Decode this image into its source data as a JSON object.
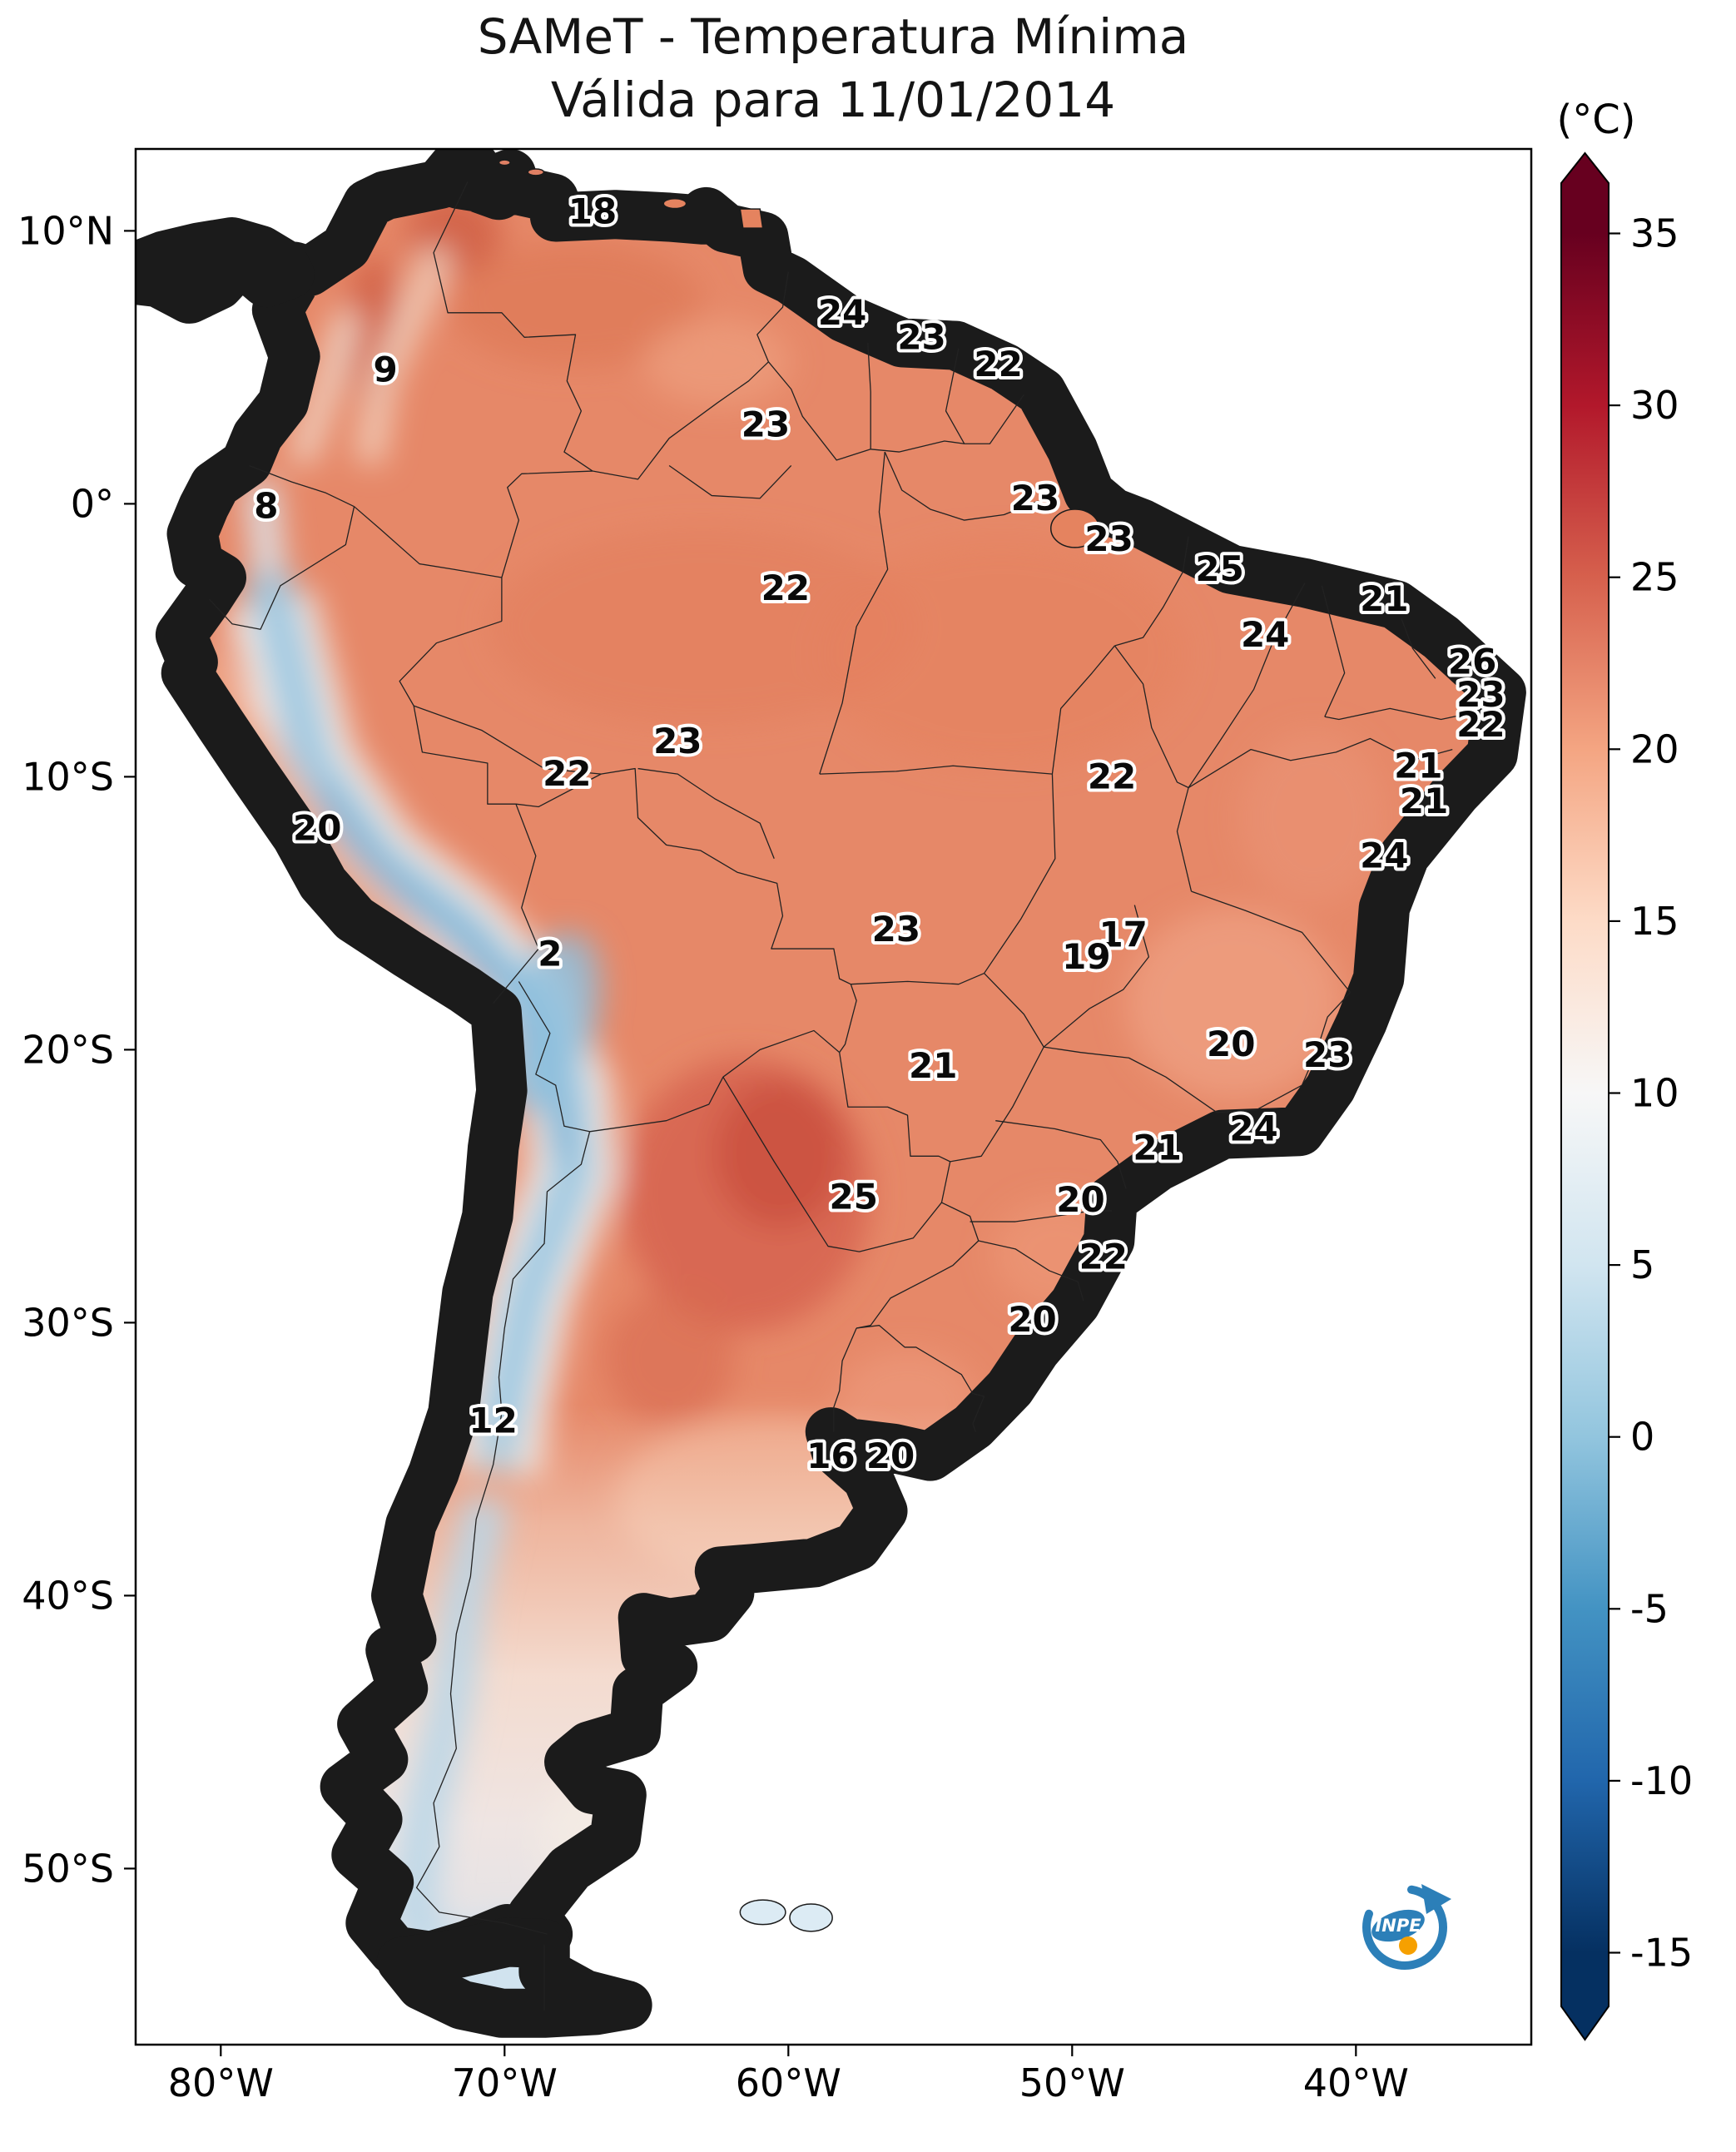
{
  "title": {
    "line1": "SAMeT - Temperatura Mínima",
    "line2": "Válida para 11/01/2014"
  },
  "colorbar": {
    "unit": "(°C)",
    "min": -15,
    "max": 35,
    "ticks": [
      35,
      30,
      25,
      20,
      15,
      10,
      5,
      0,
      -5,
      -10,
      -15
    ],
    "palette": [
      "#67001f",
      "#b2182b",
      "#d6604d",
      "#f4a582",
      "#fddbc7",
      "#f7f7f7",
      "#d1e5f0",
      "#92c5de",
      "#4393c3",
      "#2166ac",
      "#053061"
    ]
  },
  "axes": {
    "extent": {
      "lon_min": -83,
      "lon_max": -33.8,
      "lat_min": -56.5,
      "lat_max": 13
    },
    "lat_ticks": [
      {
        "label": "10°N",
        "value": 10
      },
      {
        "label": "0°",
        "value": 0
      },
      {
        "label": "10°S",
        "value": -10
      },
      {
        "label": "20°S",
        "value": -20
      },
      {
        "label": "30°S",
        "value": -30
      },
      {
        "label": "40°S",
        "value": -40
      },
      {
        "label": "50°S",
        "value": -50
      }
    ],
    "lon_ticks": [
      {
        "label": "80°W",
        "value": -80
      },
      {
        "label": "70°W",
        "value": -70
      },
      {
        "label": "60°W",
        "value": -60
      },
      {
        "label": "50°W",
        "value": -50
      },
      {
        "label": "40°W",
        "value": -40
      }
    ]
  },
  "map": {
    "temperature_labels": [
      {
        "value": 18,
        "lon": -66.9,
        "lat": 10.7
      },
      {
        "value": 24,
        "lon": -58.1,
        "lat": 7.0
      },
      {
        "value": 23,
        "lon": -55.3,
        "lat": 6.1
      },
      {
        "value": 22,
        "lon": -52.6,
        "lat": 5.1
      },
      {
        "value": 9,
        "lon": -74.2,
        "lat": 4.9
      },
      {
        "value": 23,
        "lon": -60.8,
        "lat": 2.9
      },
      {
        "value": 8,
        "lon": -78.4,
        "lat": -0.1
      },
      {
        "value": 23,
        "lon": -51.3,
        "lat": 0.2
      },
      {
        "value": 23,
        "lon": -48.7,
        "lat": -1.3
      },
      {
        "value": 25,
        "lon": -44.8,
        "lat": -2.4
      },
      {
        "value": 22,
        "lon": -60.1,
        "lat": -3.1
      },
      {
        "value": 21,
        "lon": -39.0,
        "lat": -3.5
      },
      {
        "value": 24,
        "lon": -43.2,
        "lat": -4.8
      },
      {
        "value": 26,
        "lon": -35.9,
        "lat": -5.8
      },
      {
        "value": 23,
        "lon": -35.6,
        "lat": -7.0
      },
      {
        "value": 22,
        "lon": -35.6,
        "lat": -8.1
      },
      {
        "value": 23,
        "lon": -63.9,
        "lat": -8.7
      },
      {
        "value": 21,
        "lon": -37.8,
        "lat": -9.6
      },
      {
        "value": 22,
        "lon": -67.8,
        "lat": -9.9
      },
      {
        "value": 22,
        "lon": -48.6,
        "lat": -10.0
      },
      {
        "value": 21,
        "lon": -37.6,
        "lat": -10.9
      },
      {
        "value": 20,
        "lon": -76.6,
        "lat": -11.9
      },
      {
        "value": 24,
        "lon": -39.0,
        "lat": -12.9
      },
      {
        "value": 23,
        "lon": -56.2,
        "lat": -15.6
      },
      {
        "value": 17,
        "lon": -48.2,
        "lat": -15.8
      },
      {
        "value": 19,
        "lon": -49.5,
        "lat": -16.6
      },
      {
        "value": 2,
        "lon": -68.4,
        "lat": -16.5
      },
      {
        "value": 21,
        "lon": -54.9,
        "lat": -20.6
      },
      {
        "value": 20,
        "lon": -44.4,
        "lat": -19.8
      },
      {
        "value": 23,
        "lon": -41.0,
        "lat": -20.2
      },
      {
        "value": 21,
        "lon": -47.0,
        "lat": -23.6
      },
      {
        "value": 24,
        "lon": -43.6,
        "lat": -22.9
      },
      {
        "value": 25,
        "lon": -57.7,
        "lat": -25.4
      },
      {
        "value": 20,
        "lon": -49.7,
        "lat": -25.5
      },
      {
        "value": 22,
        "lon": -48.9,
        "lat": -27.6
      },
      {
        "value": 20,
        "lon": -51.4,
        "lat": -29.9
      },
      {
        "value": 12,
        "lon": -70.4,
        "lat": -33.6
      },
      {
        "value": 16,
        "lon": -58.5,
        "lat": -34.9
      },
      {
        "value": 20,
        "lon": -56.4,
        "lat": -34.9
      }
    ]
  },
  "logo": {
    "text": "INPE"
  }
}
